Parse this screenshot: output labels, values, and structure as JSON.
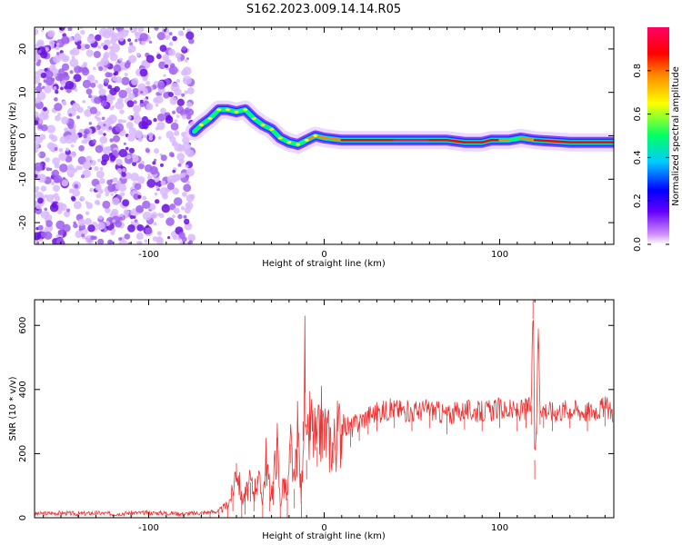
{
  "title": "S162.2023.009.14.14.R05",
  "chart_data": [
    {
      "type": "heatmap",
      "xlabel": "Height of straight line (km)",
      "ylabel": "Frequency (Hz)",
      "xlim": [
        -165,
        165
      ],
      "ylim": [
        -25,
        25
      ],
      "x_ticks": [
        -100,
        0,
        100
      ],
      "x_tick_labels": [
        "-100",
        "0",
        "100"
      ],
      "y_ticks": [
        -20,
        -10,
        0,
        10,
        20
      ],
      "y_tick_labels": [
        "-20",
        "-10",
        "0",
        "10",
        "20"
      ],
      "grid": false,
      "colorbar": {
        "label": "Normalized spectral amplitude",
        "range": [
          0,
          1
        ],
        "ticks": [
          0.0,
          0.2,
          0.4,
          0.6,
          0.8
        ],
        "tick_labels": [
          "0.0",
          "0.2",
          "0.4",
          "0.6",
          "0.8"
        ],
        "colormap": [
          "#ffffff",
          "#cc88ff",
          "#6600ff",
          "#0000ff",
          "#00ccff",
          "#00ff66",
          "#ffff00",
          "#ff8800",
          "#ff0000",
          "#ff0066"
        ]
      },
      "noise_region": {
        "x_range": [
          -165,
          -75
        ],
        "amplitude": 0.3
      },
      "ridge": [
        {
          "x": -74,
          "y": 1,
          "a": 0.5
        },
        {
          "x": -70,
          "y": 2.5,
          "a": 0.55
        },
        {
          "x": -65,
          "y": 4,
          "a": 0.6
        },
        {
          "x": -60,
          "y": 6,
          "a": 0.6
        },
        {
          "x": -55,
          "y": 6,
          "a": 0.6
        },
        {
          "x": -50,
          "y": 5.5,
          "a": 0.6
        },
        {
          "x": -45,
          "y": 6,
          "a": 0.6
        },
        {
          "x": -40,
          "y": 4,
          "a": 0.55
        },
        {
          "x": -35,
          "y": 2.5,
          "a": 0.55
        },
        {
          "x": -30,
          "y": 1.5,
          "a": 0.55
        },
        {
          "x": -25,
          "y": -0.5,
          "a": 0.6
        },
        {
          "x": -20,
          "y": -1.5,
          "a": 0.65
        },
        {
          "x": -15,
          "y": -2,
          "a": 0.7
        },
        {
          "x": -10,
          "y": -1,
          "a": 0.7
        },
        {
          "x": -5,
          "y": 0,
          "a": 0.75
        },
        {
          "x": 0,
          "y": -0.5,
          "a": 0.8
        },
        {
          "x": 10,
          "y": -1,
          "a": 0.85
        },
        {
          "x": 20,
          "y": -1,
          "a": 0.9
        },
        {
          "x": 40,
          "y": -1,
          "a": 0.95
        },
        {
          "x": 60,
          "y": -1,
          "a": 0.95
        },
        {
          "x": 70,
          "y": -1,
          "a": 0.85
        },
        {
          "x": 80,
          "y": -1.5,
          "a": 0.9
        },
        {
          "x": 90,
          "y": -1.5,
          "a": 0.85
        },
        {
          "x": 95,
          "y": -1,
          "a": 0.9
        },
        {
          "x": 100,
          "y": -1,
          "a": 0.9
        },
        {
          "x": 105,
          "y": -1,
          "a": 0.7
        },
        {
          "x": 112,
          "y": -0.5,
          "a": 0.6
        },
        {
          "x": 120,
          "y": -1,
          "a": 0.9
        },
        {
          "x": 140,
          "y": -1.5,
          "a": 0.95
        },
        {
          "x": 165,
          "y": -1.5,
          "a": 0.9
        }
      ]
    },
    {
      "type": "line",
      "xlabel": "Height of straight line (km)",
      "ylabel": "SNR (10 * v/v)",
      "xlim": [
        -165,
        165
      ],
      "ylim": [
        0,
        680
      ],
      "x_ticks": [
        -100,
        0,
        100
      ],
      "x_tick_labels": [
        "-100",
        "0",
        "100"
      ],
      "y_ticks": [
        0,
        200,
        400,
        600
      ],
      "y_tick_labels": [
        "0",
        "200",
        "400",
        "600"
      ],
      "grid": false,
      "color": "#ee3333",
      "series": [
        {
          "x": [
            -165,
            -150,
            -140,
            -130,
            -120,
            -110,
            -100,
            -90,
            -80,
            -70,
            -65,
            -60,
            -55,
            -52,
            -50,
            -47,
            -45,
            -42,
            -40,
            -38,
            -35,
            -33,
            -31,
            -29,
            -27,
            -25,
            -23,
            -21,
            -19,
            -17,
            -15,
            -13,
            -12,
            -11,
            -10,
            -8,
            -6,
            -4,
            -2,
            0,
            5,
            10,
            15,
            20,
            25,
            30,
            40,
            50,
            60,
            70,
            80,
            90,
            100,
            110,
            115,
            118,
            119,
            120,
            121,
            122,
            123,
            125,
            130,
            140,
            150,
            160,
            165
          ],
          "y": [
            12,
            15,
            12,
            15,
            12,
            15,
            15,
            15,
            12,
            15,
            18,
            20,
            40,
            80,
            170,
            60,
            70,
            110,
            80,
            130,
            60,
            190,
            80,
            100,
            250,
            40,
            120,
            60,
            230,
            90,
            280,
            50,
            300,
            450,
            180,
            300,
            260,
            220,
            300,
            270,
            230,
            290,
            280,
            300,
            320,
            330,
            340,
            330,
            340,
            320,
            335,
            330,
            340,
            330,
            340,
            350,
            680,
            180,
            320,
            590,
            350,
            340,
            330,
            340,
            330,
            345,
            330
          ]
        }
      ]
    }
  ]
}
